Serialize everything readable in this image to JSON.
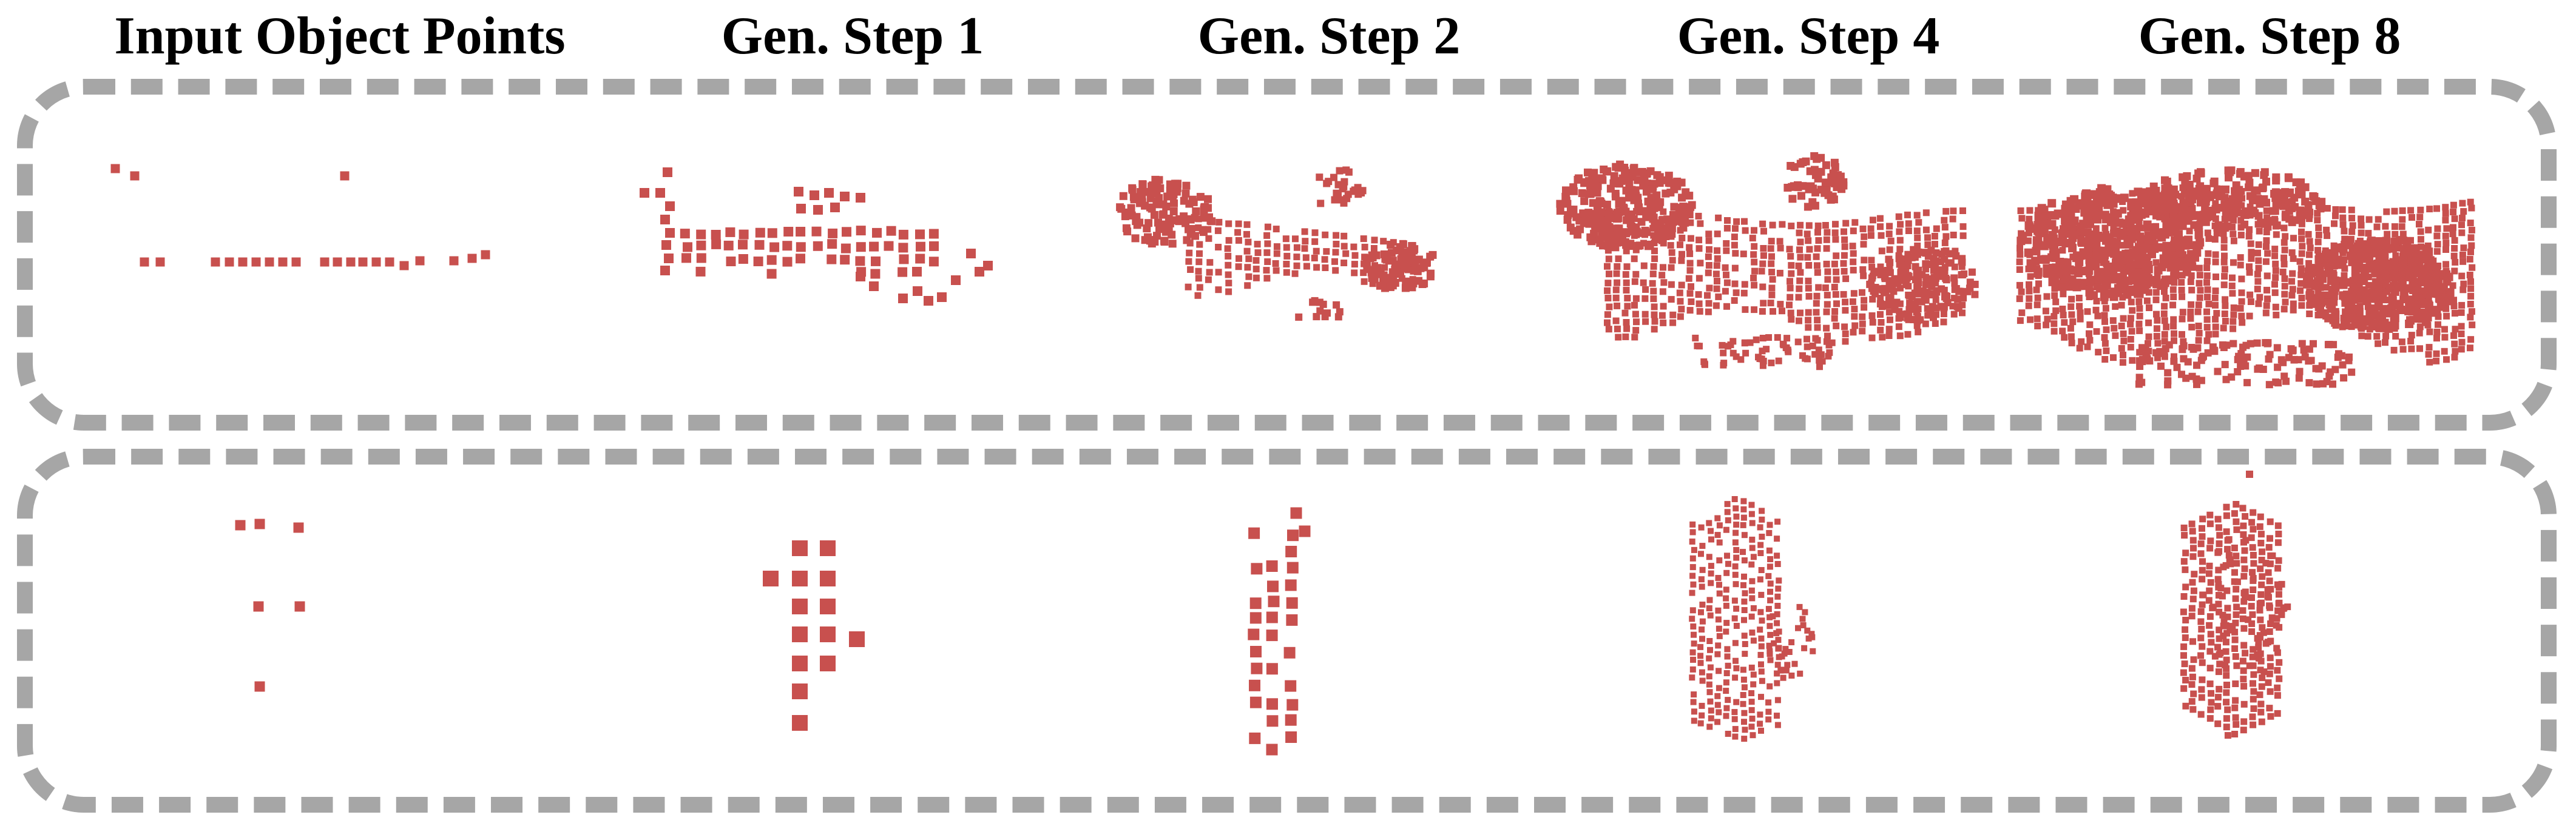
{
  "headers": [
    "Input Object Points",
    "Gen. Step 1",
    "Gen. Step 2",
    "Gen. Step 4",
    "Gen. Step 8"
  ],
  "colors": {
    "points": "#c8504e",
    "panel_border": "#a6a6a6",
    "background": "#ffffff",
    "header_text": "#000000"
  }
}
